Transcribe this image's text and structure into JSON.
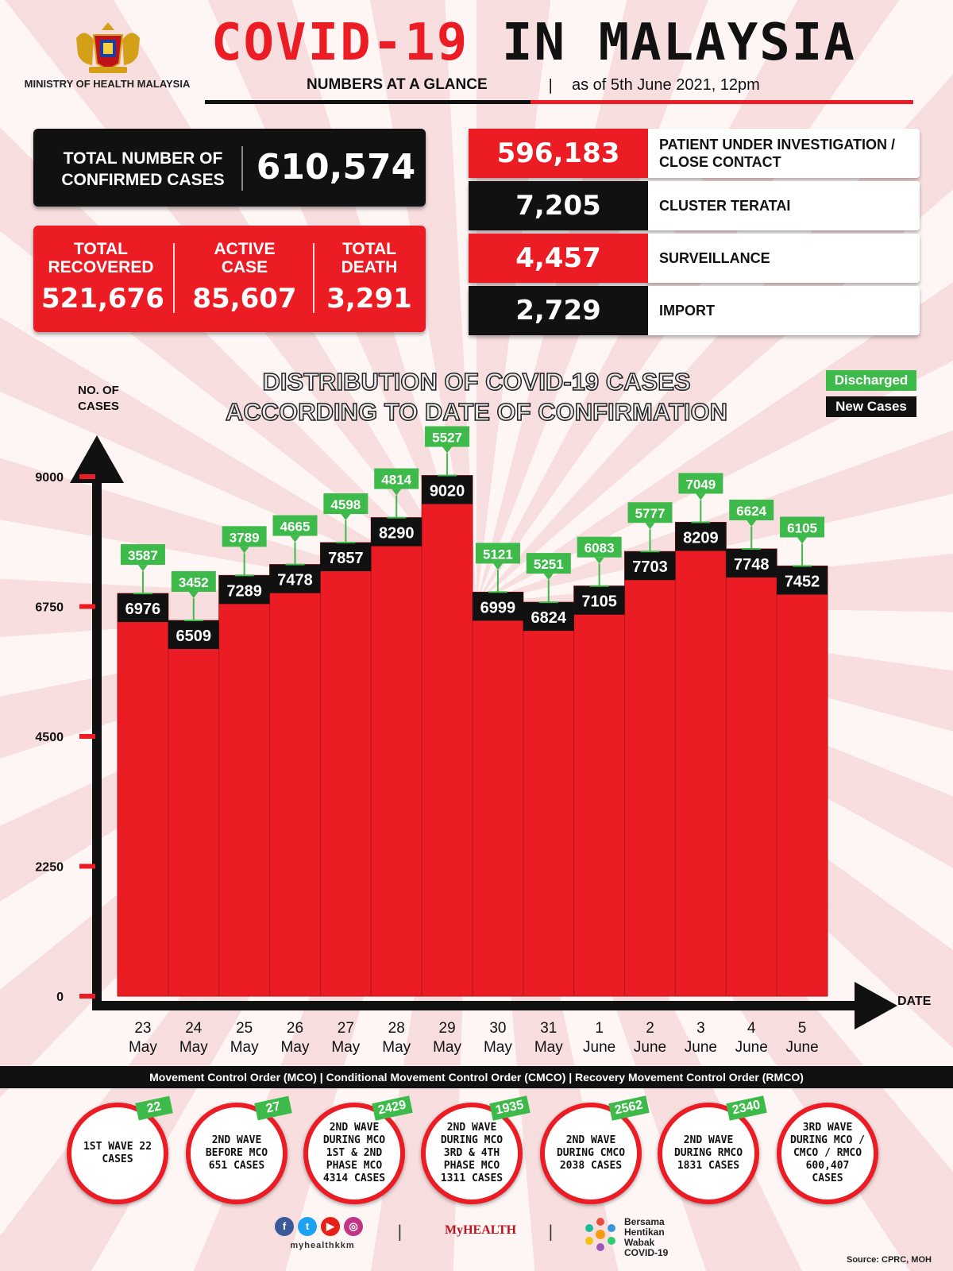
{
  "header": {
    "ministry": "MINISTRY OF HEALTH MALAYSIA",
    "title_part1": "COVID-19",
    "title_part2": "IN MALAYSIA",
    "subtitle": "NUMBERS AT A GLANCE",
    "separator": "|",
    "as_of": "as of 5th June 2021, 12pm"
  },
  "summary": {
    "total_confirmed_label": "TOTAL NUMBER OF CONFIRMED CASES",
    "total_confirmed_value": "610,574",
    "recovered_label": "TOTAL RECOVERED",
    "recovered_value": "521,676",
    "active_label": "ACTIVE CASE",
    "active_value": "85,607",
    "death_label": "TOTAL DEATH",
    "death_value": "3,291"
  },
  "sources": [
    {
      "value": "596,183",
      "label": "PATIENT UNDER INVESTIGATION / CLOSE CONTACT",
      "style": "red"
    },
    {
      "value": "7,205",
      "label": "CLUSTER TERATAI",
      "style": "black"
    },
    {
      "value": "4,457",
      "label": "SURVEILLANCE",
      "style": "red"
    },
    {
      "value": "2,729",
      "label": "IMPORT",
      "style": "black"
    }
  ],
  "colors": {
    "red": "#ec1c24",
    "black": "#111111",
    "green": "#3dba4a"
  },
  "chart_data": {
    "type": "bar",
    "title": "DISTRIBUTION OF COVID-19 CASES ACCORDING TO DATE OF CONFIRMATION",
    "ylabel": "NO. OF CASES",
    "xlabel": "DATE",
    "ylim": [
      0,
      9000
    ],
    "yticks": [
      0,
      2250,
      4500,
      6750,
      9000
    ],
    "categories": [
      [
        "23",
        "May"
      ],
      [
        "24",
        "May"
      ],
      [
        "25",
        "May"
      ],
      [
        "26",
        "May"
      ],
      [
        "27",
        "May"
      ],
      [
        "28",
        "May"
      ],
      [
        "29",
        "May"
      ],
      [
        "30",
        "May"
      ],
      [
        "31",
        "May"
      ],
      [
        "1",
        "June"
      ],
      [
        "2",
        "June"
      ],
      [
        "3",
        "June"
      ],
      [
        "4",
        "June"
      ],
      [
        "5",
        "June"
      ]
    ],
    "legend": [
      "Discharged",
      "New Cases"
    ],
    "series": [
      {
        "name": "New Cases",
        "values": [
          6976,
          6509,
          7289,
          7478,
          7857,
          8290,
          9020,
          6999,
          6824,
          7105,
          7703,
          8209,
          7748,
          7452
        ]
      },
      {
        "name": "Discharged",
        "values": [
          3587,
          3452,
          3789,
          4665,
          4598,
          4814,
          5527,
          5121,
          5251,
          6083,
          5777,
          7049,
          6624,
          6105
        ]
      }
    ]
  },
  "mco_band": "Movement Control Order (MCO) | Conditional Movement Control Order (CMCO) | Recovery Movement Control Order (RMCO)",
  "waves": [
    {
      "text": "1ST WAVE 22 CASES",
      "badge": "22"
    },
    {
      "text": "2ND WAVE BEFORE MCO 651 CASES",
      "badge": "27"
    },
    {
      "text": "2ND WAVE DURING MCO 1ST & 2ND PHASE MCO 4314 CASES",
      "badge": "2429"
    },
    {
      "text": "2ND WAVE DURING MCO 3RD & 4TH PHASE MCO 1311 CASES",
      "badge": "1935"
    },
    {
      "text": "2ND WAVE DURING CMCO 2038 CASES",
      "badge": "2562"
    },
    {
      "text": "2ND WAVE DURING RMCO 1831 CASES",
      "badge": "2340"
    },
    {
      "text": "3RD WAVE DURING MCO / CMCO / RMCO 600,407 CASES",
      "badge": ""
    }
  ],
  "footer": {
    "social_icons": [
      "facebook-icon",
      "twitter-icon",
      "youtube-icon",
      "instagram-icon"
    ],
    "handle": "myhealthkkm",
    "myhealth": "MyHEALTH",
    "campaign": "Bersama Hentikan Wabak COVID-19",
    "source": "Source: CPRC, MOH"
  }
}
